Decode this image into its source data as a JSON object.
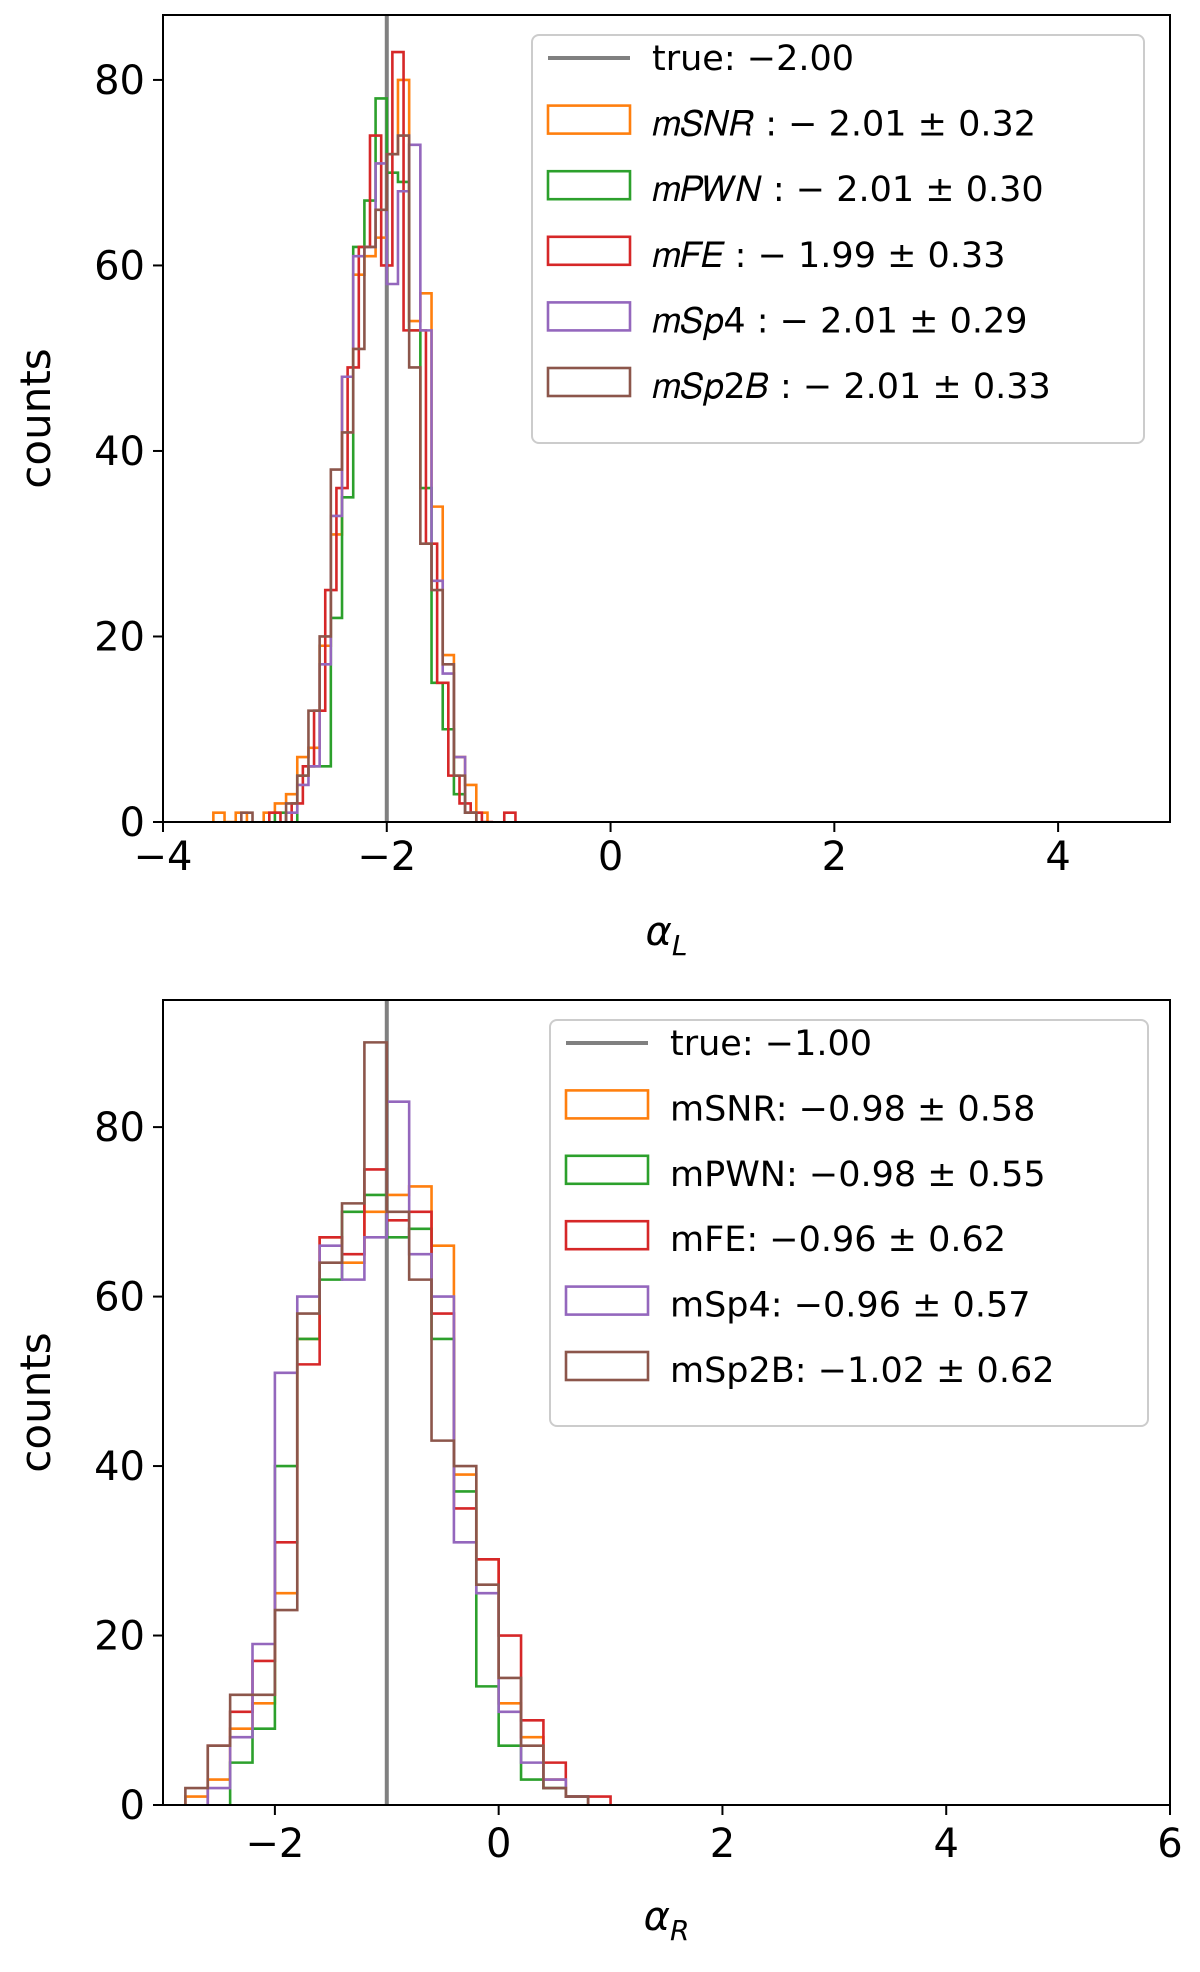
{
  "chart_data": [
    {
      "type": "histogram",
      "xlabel_symbol": "α",
      "xlabel_subscript": "L",
      "ylabel": "counts",
      "xlim": [
        -4,
        5
      ],
      "ylim": [
        0,
        87
      ],
      "xticks": [
        -4,
        -2,
        0,
        2,
        4
      ],
      "xtick_labels": [
        "−4",
        "−2",
        "0",
        "2",
        "4"
      ],
      "yticks": [
        0,
        20,
        40,
        60,
        80
      ],
      "ytick_labels": [
        "0",
        "20",
        "40",
        "60",
        "80"
      ],
      "legend_position": "upper right",
      "true_line": {
        "x": -2.0,
        "label": "true: −2.00",
        "color": "#808080"
      },
      "series": [
        {
          "name": "mSNR",
          "legend": "𝑚𝑆𝑁𝑅 : − 2.01 ± 0.32",
          "color": "#ff7f0e",
          "bins": [
            [
              -3.55,
              -3.45,
              1
            ],
            [
              -3.45,
              -3.35,
              0
            ],
            [
              -3.35,
              -3.25,
              1
            ],
            [
              -3.1,
              -3.0,
              1
            ],
            [
              -3.0,
              -2.9,
              2
            ],
            [
              -2.9,
              -2.8,
              3
            ],
            [
              -2.8,
              -2.7,
              7
            ],
            [
              -2.7,
              -2.6,
              8
            ],
            [
              -2.6,
              -2.5,
              19
            ],
            [
              -2.5,
              -2.4,
              31
            ],
            [
              -2.4,
              -2.3,
              48
            ],
            [
              -2.3,
              -2.2,
              59
            ],
            [
              -2.2,
              -2.1,
              61
            ],
            [
              -2.1,
              -2.0,
              63
            ],
            [
              -2.0,
              -1.9,
              72
            ],
            [
              -1.9,
              -1.8,
              80
            ],
            [
              -1.8,
              -1.7,
              54
            ],
            [
              -1.7,
              -1.6,
              57
            ],
            [
              -1.6,
              -1.5,
              34
            ],
            [
              -1.5,
              -1.4,
              18
            ],
            [
              -1.4,
              -1.3,
              7
            ],
            [
              -1.3,
              -1.2,
              4
            ],
            [
              -1.2,
              -1.1,
              1
            ]
          ]
        },
        {
          "name": "mPWN",
          "legend": "𝑚𝑃𝑊𝑁 : − 2.01 ± 0.30",
          "color": "#2ca02c",
          "bins": [
            [
              -3.0,
              -2.9,
              1
            ],
            [
              -2.8,
              -2.7,
              5
            ],
            [
              -2.7,
              -2.6,
              6
            ],
            [
              -2.6,
              -2.5,
              6
            ],
            [
              -2.5,
              -2.4,
              22
            ],
            [
              -2.4,
              -2.3,
              35
            ],
            [
              -2.3,
              -2.2,
              62
            ],
            [
              -2.2,
              -2.1,
              67
            ],
            [
              -2.1,
              -2.0,
              78
            ],
            [
              -2.0,
              -1.9,
              70
            ],
            [
              -1.9,
              -1.8,
              69
            ],
            [
              -1.8,
              -1.7,
              53
            ],
            [
              -1.7,
              -1.6,
              36
            ],
            [
              -1.6,
              -1.5,
              15
            ],
            [
              -1.5,
              -1.4,
              10
            ],
            [
              -1.4,
              -1.3,
              3
            ],
            [
              -1.3,
              -1.2,
              1
            ]
          ]
        },
        {
          "name": "mFE",
          "legend": "𝑚𝐹𝐸 : − 1.99 ± 0.33",
          "color": "#d62728",
          "bins": [
            [
              -3.05,
              -2.95,
              1
            ],
            [
              -2.85,
              -2.75,
              2
            ],
            [
              -2.75,
              -2.65,
              6
            ],
            [
              -2.65,
              -2.55,
              12
            ],
            [
              -2.55,
              -2.45,
              25
            ],
            [
              -2.45,
              -2.35,
              36
            ],
            [
              -2.35,
              -2.25,
              49
            ],
            [
              -2.25,
              -2.15,
              62
            ],
            [
              -2.15,
              -2.05,
              74
            ],
            [
              -2.05,
              -1.95,
              60
            ],
            [
              -1.95,
              -1.85,
              83
            ],
            [
              -1.85,
              -1.75,
              53
            ],
            [
              -1.75,
              -1.65,
              53
            ],
            [
              -1.65,
              -1.55,
              30
            ],
            [
              -1.55,
              -1.45,
              15
            ],
            [
              -1.45,
              -1.35,
              5
            ],
            [
              -1.35,
              -1.25,
              2
            ],
            [
              -1.25,
              -1.15,
              1
            ],
            [
              -1.15,
              -1.05,
              0
            ],
            [
              -0.95,
              -0.85,
              1
            ]
          ]
        },
        {
          "name": "mSp4",
          "legend": "𝑚𝑆𝑝4 : − 2.01 ± 0.29",
          "color": "#9467bd",
          "bins": [
            [
              -2.9,
              -2.8,
              1
            ],
            [
              -2.8,
              -2.7,
              4
            ],
            [
              -2.7,
              -2.6,
              6
            ],
            [
              -2.6,
              -2.5,
              17
            ],
            [
              -2.5,
              -2.4,
              33
            ],
            [
              -2.4,
              -2.3,
              48
            ],
            [
              -2.3,
              -2.2,
              61
            ],
            [
              -2.2,
              -2.1,
              62
            ],
            [
              -2.1,
              -2.0,
              71
            ],
            [
              -2.0,
              -1.9,
              58
            ],
            [
              -1.9,
              -1.8,
              68
            ],
            [
              -1.8,
              -1.7,
              73
            ],
            [
              -1.7,
              -1.6,
              53
            ],
            [
              -1.6,
              -1.5,
              26
            ],
            [
              -1.5,
              -1.4,
              16
            ],
            [
              -1.4,
              -1.3,
              7
            ],
            [
              -1.3,
              -1.2,
              1
            ]
          ]
        },
        {
          "name": "mSp2B",
          "legend": "𝑚𝑆𝑝2𝐵 : − 2.01 ± 0.33",
          "color": "#8c564b",
          "bins": [
            [
              -3.3,
              -3.2,
              1
            ],
            [
              -2.9,
              -2.8,
              2
            ],
            [
              -2.8,
              -2.7,
              5
            ],
            [
              -2.7,
              -2.6,
              12
            ],
            [
              -2.6,
              -2.5,
              20
            ],
            [
              -2.5,
              -2.4,
              38
            ],
            [
              -2.4,
              -2.3,
              42
            ],
            [
              -2.3,
              -2.2,
              51
            ],
            [
              -2.2,
              -2.1,
              62
            ],
            [
              -2.1,
              -2.0,
              66
            ],
            [
              -2.0,
              -1.9,
              72
            ],
            [
              -1.9,
              -1.8,
              74
            ],
            [
              -1.8,
              -1.7,
              49
            ],
            [
              -1.7,
              -1.6,
              30
            ],
            [
              -1.6,
              -1.5,
              25
            ],
            [
              -1.5,
              -1.4,
              17
            ],
            [
              -1.4,
              -1.3,
              5
            ],
            [
              -1.3,
              -1.2,
              1
            ]
          ]
        }
      ]
    },
    {
      "type": "histogram",
      "xlabel_symbol": "α",
      "xlabel_subscript": "R",
      "ylabel": "counts",
      "xlim": [
        -3,
        6
      ],
      "ylim": [
        0,
        95
      ],
      "xticks": [
        -2,
        0,
        2,
        4,
        6
      ],
      "xtick_labels": [
        "−2",
        "0",
        "2",
        "4",
        "6"
      ],
      "yticks": [
        0,
        20,
        40,
        60,
        80
      ],
      "ytick_labels": [
        "0",
        "20",
        "40",
        "60",
        "80"
      ],
      "legend_position": "upper right",
      "true_line": {
        "x": -1.0,
        "label": "true: −1.00",
        "color": "#808080"
      },
      "series": [
        {
          "name": "mSNR",
          "legend": "mSNR: −0.98 ± 0.58",
          "color": "#ff7f0e",
          "bins": [
            [
              -2.8,
              -2.6,
              1
            ],
            [
              -2.6,
              -2.4,
              3
            ],
            [
              -2.4,
              -2.2,
              9
            ],
            [
              -2.2,
              -2.0,
              12
            ],
            [
              -2.0,
              -1.8,
              25
            ],
            [
              -1.8,
              -1.6,
              55
            ],
            [
              -1.6,
              -1.4,
              67
            ],
            [
              -1.4,
              -1.2,
              64
            ],
            [
              -1.2,
              -1.0,
              70
            ],
            [
              -1.0,
              -0.8,
              72
            ],
            [
              -0.8,
              -0.6,
              73
            ],
            [
              -0.6,
              -0.4,
              66
            ],
            [
              -0.4,
              -0.2,
              39
            ],
            [
              -0.2,
              0.0,
              29
            ],
            [
              0.0,
              0.2,
              12
            ],
            [
              0.2,
              0.4,
              8
            ],
            [
              0.4,
              0.6,
              3
            ],
            [
              0.6,
              0.8,
              1
            ]
          ]
        },
        {
          "name": "mPWN",
          "legend": "mPWN: −0.98 ± 0.55",
          "color": "#2ca02c",
          "bins": [
            [
              -2.4,
              -2.2,
              5
            ],
            [
              -2.2,
              -2.0,
              9
            ],
            [
              -2.0,
              -1.8,
              40
            ],
            [
              -1.8,
              -1.6,
              55
            ],
            [
              -1.6,
              -1.4,
              62
            ],
            [
              -1.4,
              -1.2,
              70
            ],
            [
              -1.2,
              -1.0,
              72
            ],
            [
              -1.0,
              -0.8,
              67
            ],
            [
              -0.8,
              -0.6,
              68
            ],
            [
              -0.6,
              -0.4,
              55
            ],
            [
              -0.4,
              -0.2,
              37
            ],
            [
              -0.2,
              0.0,
              14
            ],
            [
              0.0,
              0.2,
              7
            ],
            [
              0.2,
              0.4,
              3
            ],
            [
              0.4,
              0.6,
              2
            ],
            [
              0.6,
              0.8,
              1
            ]
          ]
        },
        {
          "name": "mFE",
          "legend": "mFE: −0.96 ± 0.62",
          "color": "#d62728",
          "bins": [
            [
              -2.6,
              -2.4,
              7
            ],
            [
              -2.4,
              -2.2,
              11
            ],
            [
              -2.2,
              -2.0,
              17
            ],
            [
              -2.0,
              -1.8,
              31
            ],
            [
              -1.8,
              -1.6,
              52
            ],
            [
              -1.6,
              -1.4,
              67
            ],
            [
              -1.4,
              -1.2,
              65
            ],
            [
              -1.2,
              -1.0,
              75
            ],
            [
              -1.0,
              -0.8,
              69
            ],
            [
              -0.8,
              -0.6,
              70
            ],
            [
              -0.6,
              -0.4,
              58
            ],
            [
              -0.4,
              -0.2,
              35
            ],
            [
              -0.2,
              0.0,
              29
            ],
            [
              0.0,
              0.2,
              20
            ],
            [
              0.2,
              0.4,
              10
            ],
            [
              0.4,
              0.6,
              5
            ],
            [
              0.6,
              0.8,
              1
            ],
            [
              0.8,
              1.0,
              1
            ]
          ]
        },
        {
          "name": "mSp4",
          "legend": "mSp4: −0.96 ± 0.57",
          "color": "#9467bd",
          "bins": [
            [
              -2.6,
              -2.4,
              2
            ],
            [
              -2.4,
              -2.2,
              8
            ],
            [
              -2.2,
              -2.0,
              19
            ],
            [
              -2.0,
              -1.8,
              51
            ],
            [
              -1.8,
              -1.6,
              60
            ],
            [
              -1.6,
              -1.4,
              66
            ],
            [
              -1.4,
              -1.2,
              62
            ],
            [
              -1.2,
              -1.0,
              67
            ],
            [
              -1.0,
              -0.8,
              83
            ],
            [
              -0.8,
              -0.6,
              65
            ],
            [
              -0.6,
              -0.4,
              60
            ],
            [
              -0.4,
              -0.2,
              31
            ],
            [
              -0.2,
              0.0,
              25
            ],
            [
              0.0,
              0.2,
              11
            ],
            [
              0.2,
              0.4,
              5
            ],
            [
              0.4,
              0.6,
              3
            ],
            [
              0.6,
              0.8,
              1
            ]
          ]
        },
        {
          "name": "mSp2B",
          "legend": "mSp2B: −1.02 ± 0.62",
          "color": "#8c564b",
          "bins": [
            [
              -2.8,
              -2.6,
              2
            ],
            [
              -2.6,
              -2.4,
              7
            ],
            [
              -2.4,
              -2.2,
              13
            ],
            [
              -2.2,
              -2.0,
              13
            ],
            [
              -2.0,
              -1.8,
              23
            ],
            [
              -1.8,
              -1.6,
              58
            ],
            [
              -1.6,
              -1.4,
              64
            ],
            [
              -1.4,
              -1.2,
              71
            ],
            [
              -1.2,
              -1.0,
              90
            ],
            [
              -1.0,
              -0.8,
              70
            ],
            [
              -0.8,
              -0.6,
              62
            ],
            [
              -0.6,
              -0.4,
              43
            ],
            [
              -0.4,
              -0.2,
              40
            ],
            [
              -0.2,
              0.0,
              26
            ],
            [
              0.0,
              0.2,
              15
            ],
            [
              0.2,
              0.4,
              7
            ],
            [
              0.4,
              0.6,
              2
            ],
            [
              0.6,
              0.8,
              1
            ]
          ]
        }
      ]
    }
  ]
}
